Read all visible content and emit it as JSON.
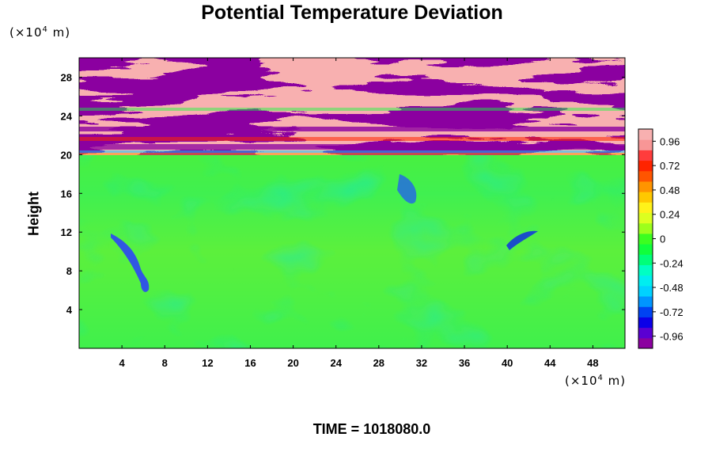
{
  "chart_data": {
    "type": "heatmap",
    "title": "Potential Temperature Deviation",
    "ylabel": "Height",
    "xlabel": "",
    "x_unit": "(×10",
    "x_unit_exp": "4",
    "x_unit_tail": " m)",
    "y_unit": "(×10",
    "y_unit_exp": "4",
    "y_unit_tail": " m)",
    "xlim": [
      0,
      51
    ],
    "ylim": [
      0,
      30
    ],
    "xticks": [
      "4",
      "8",
      "12",
      "16",
      "20",
      "24",
      "28",
      "32",
      "36",
      "40",
      "44",
      "48"
    ],
    "yticks": [
      "4",
      "8",
      "12",
      "16",
      "20",
      "24",
      "28"
    ],
    "colorbar": {
      "range": [
        -1.08,
        1.08
      ],
      "ticks": [
        "0.96",
        "0.72",
        "0.48",
        "0.24",
        "0",
        "-0.24",
        "-0.48",
        "-0.72",
        "-0.96"
      ],
      "colors": [
        "#8b00a0",
        "#5a00d2",
        "#0b00e8",
        "#0043f2",
        "#0095ff",
        "#00d2ff",
        "#00eef0",
        "#00ffc3",
        "#00ff7a",
        "#10ff3c",
        "#3cfe20",
        "#9cff1c",
        "#dcff20",
        "#fff21a",
        "#ffc800",
        "#ff9400",
        "#ff5500",
        "#ff2400",
        "#ff3c3c",
        "#f89696",
        "#f8b0b0"
      ]
    },
    "layers": [
      {
        "y_range": [
          19.8,
          30
        ],
        "description": "stratified band pattern"
      },
      {
        "y_range": [
          0,
          19.8
        ],
        "description": "near-zero deviation, green"
      }
    ]
  },
  "footer": {
    "time_label": "TIME = 1018080.0"
  }
}
